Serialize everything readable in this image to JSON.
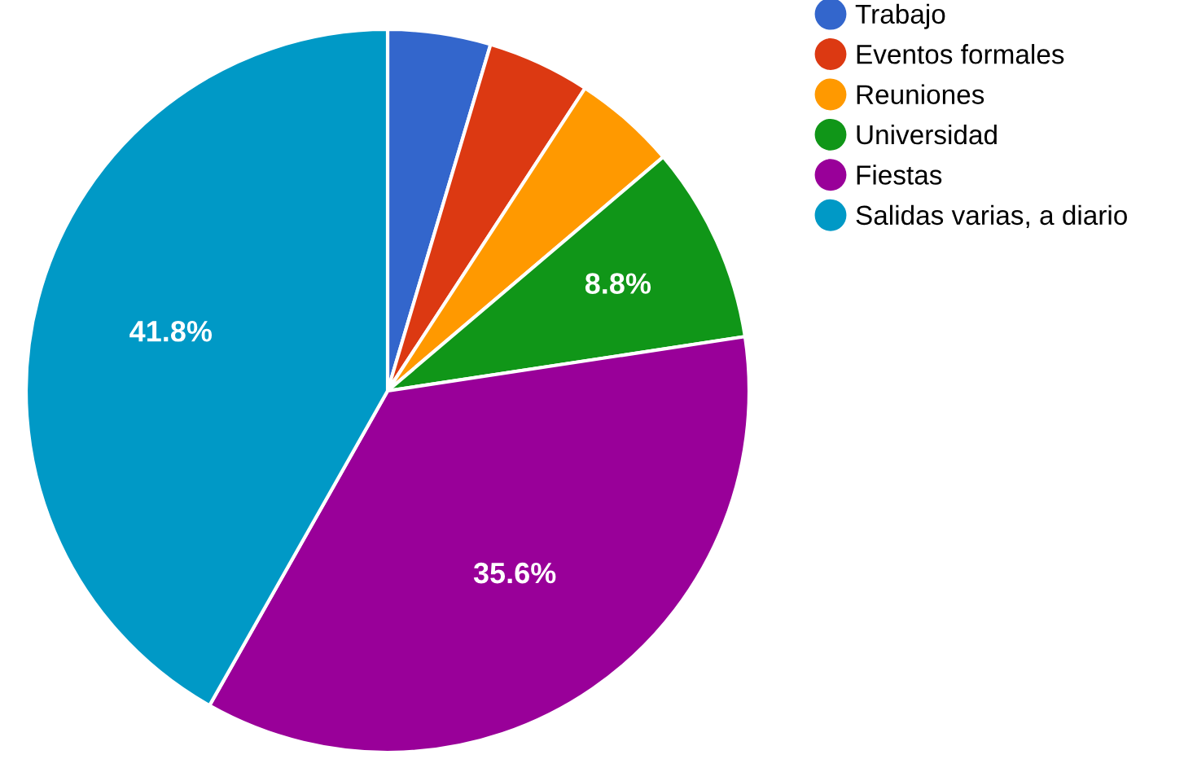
{
  "chart_data": {
    "type": "pie",
    "categories": [
      "Trabajo",
      "Eventos formales",
      "Reuniones",
      "Universidad",
      "Fiestas",
      "Salidas varias, a diario"
    ],
    "values": [
      4.6,
      4.6,
      4.6,
      8.8,
      35.6,
      41.8
    ],
    "value_labels": [
      null,
      null,
      null,
      "8.8%",
      "35.6%",
      "41.8%"
    ],
    "colors": [
      "#3366cc",
      "#dc3912",
      "#ff9900",
      "#109618",
      "#990099",
      "#0099c6"
    ],
    "legend": "right"
  }
}
